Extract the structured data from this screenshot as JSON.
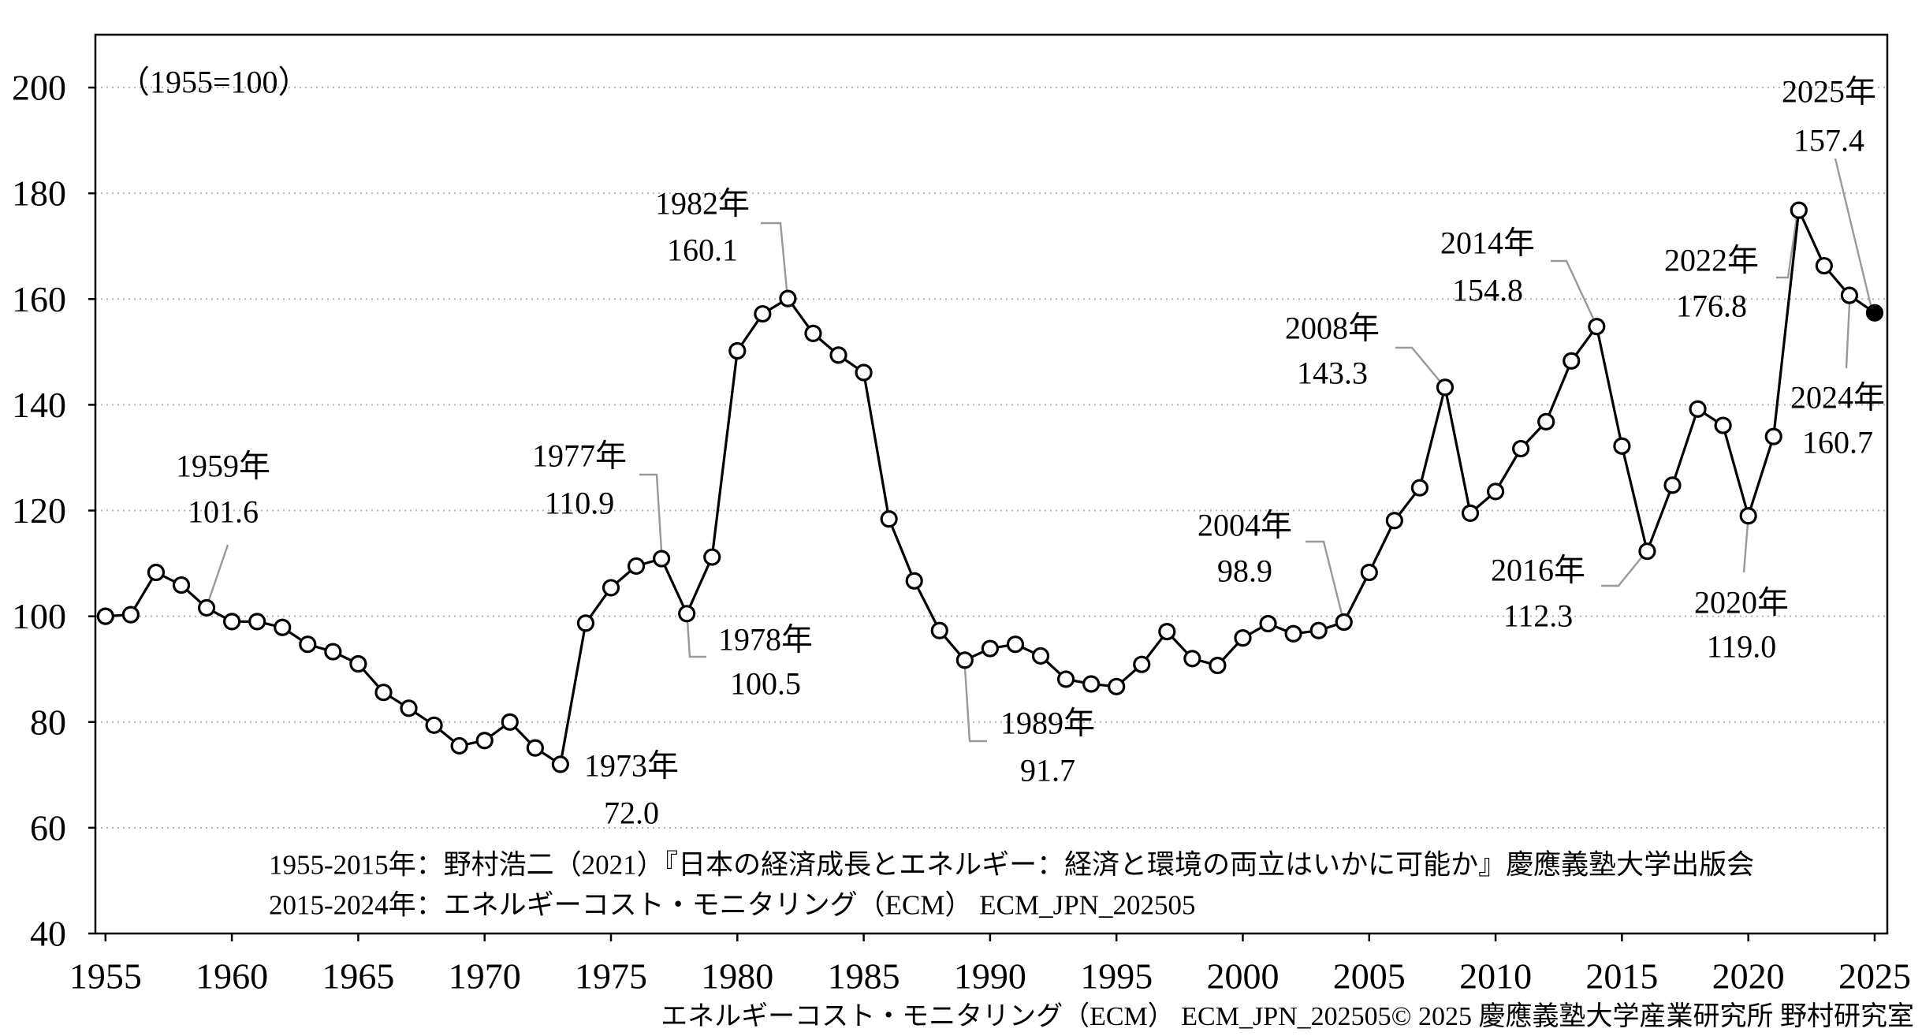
{
  "chart_data": {
    "type": "line",
    "index_base_label": "（1955=100）",
    "x": [
      1955,
      1956,
      1957,
      1958,
      1959,
      1960,
      1961,
      1962,
      1963,
      1964,
      1965,
      1966,
      1967,
      1968,
      1969,
      1970,
      1971,
      1972,
      1973,
      1974,
      1975,
      1976,
      1977,
      1978,
      1979,
      1980,
      1981,
      1982,
      1983,
      1984,
      1985,
      1986,
      1987,
      1988,
      1989,
      1990,
      1991,
      1992,
      1993,
      1994,
      1995,
      1996,
      1997,
      1998,
      1999,
      2000,
      2001,
      2002,
      2003,
      2004,
      2005,
      2006,
      2007,
      2008,
      2009,
      2010,
      2011,
      2012,
      2013,
      2014,
      2015,
      2016,
      2017,
      2018,
      2019,
      2020,
      2021,
      2022,
      2023,
      2024,
      2025
    ],
    "y": [
      100.0,
      100.3,
      108.3,
      105.9,
      101.6,
      99.0,
      99.0,
      97.9,
      94.7,
      93.3,
      91.0,
      85.6,
      82.6,
      79.4,
      75.5,
      76.5,
      80.0,
      75.1,
      72.0,
      98.7,
      105.4,
      109.5,
      110.9,
      100.5,
      111.2,
      150.2,
      157.2,
      160.1,
      153.5,
      149.4,
      146.1,
      118.4,
      106.7,
      97.3,
      91.7,
      93.9,
      94.7,
      92.5,
      88.1,
      87.2,
      86.7,
      90.9,
      97.1,
      92.0,
      90.7,
      95.9,
      98.6,
      96.7,
      97.3,
      98.9,
      108.3,
      118.1,
      124.3,
      143.3,
      119.5,
      123.6,
      131.7,
      136.8,
      148.3,
      154.8,
      132.2,
      112.3,
      124.8,
      139.2,
      136.1,
      119.0,
      134.0,
      176.8,
      166.3,
      160.7,
      157.4
    ],
    "xlim": [
      1954.6,
      2025.5
    ],
    "ylim": [
      40,
      210
    ],
    "xticks": [
      1955,
      1960,
      1965,
      1970,
      1975,
      1980,
      1985,
      1990,
      1995,
      2000,
      2005,
      2010,
      2015,
      2020,
      2025
    ],
    "yticks": [
      40,
      60,
      80,
      100,
      120,
      140,
      160,
      180,
      200
    ],
    "grid": true,
    "annotations": [
      {
        "x": 1959,
        "y": 101.6,
        "year_label": "1959年",
        "value_label": "101.6"
      },
      {
        "x": 1973,
        "y": 72.0,
        "year_label": "1973年",
        "value_label": "72.0"
      },
      {
        "x": 1977,
        "y": 110.9,
        "year_label": "1977年",
        "value_label": "110.9"
      },
      {
        "x": 1978,
        "y": 100.5,
        "year_label": "1978年",
        "value_label": "100.5"
      },
      {
        "x": 1982,
        "y": 160.1,
        "year_label": "1982年",
        "value_label": "160.1"
      },
      {
        "x": 1989,
        "y": 91.7,
        "year_label": "1989年",
        "value_label": "91.7"
      },
      {
        "x": 2004,
        "y": 98.9,
        "year_label": "2004年",
        "value_label": "98.9"
      },
      {
        "x": 2008,
        "y": 143.3,
        "year_label": "2008年",
        "value_label": "143.3"
      },
      {
        "x": 2014,
        "y": 154.8,
        "year_label": "2014年",
        "value_label": "154.8"
      },
      {
        "x": 2016,
        "y": 112.3,
        "year_label": "2016年",
        "value_label": "112.3"
      },
      {
        "x": 2020,
        "y": 119.0,
        "year_label": "2020年",
        "value_label": "119.0"
      },
      {
        "x": 2022,
        "y": 176.8,
        "year_label": "2022年",
        "value_label": "176.8"
      },
      {
        "x": 2024,
        "y": 160.7,
        "year_label": "2024年",
        "value_label": "160.7"
      },
      {
        "x": 2025,
        "y": 157.4,
        "year_label": "2025年",
        "value_label": "157.4"
      }
    ],
    "source_notes": [
      "1955-2015年：野村浩二（2021）『日本の経済成長とエネルギー：経済と環境の両立はいかに可能か』慶應義塾大学出版会",
      "2015-2024年：エネルギーコスト・モニタリング（ECM） ECM_JPN_202505"
    ],
    "colors": {
      "line": "#000000",
      "grid": "#b3b3b3",
      "leader": "#999999",
      "marker_fill": "#ffffff",
      "last_marker_fill": "#000000"
    }
  },
  "footer": "エネルギーコスト・モニタリング（ECM） ECM_JPN_202505© 2025 慶應義塾大学産業研究所 野村研究室"
}
